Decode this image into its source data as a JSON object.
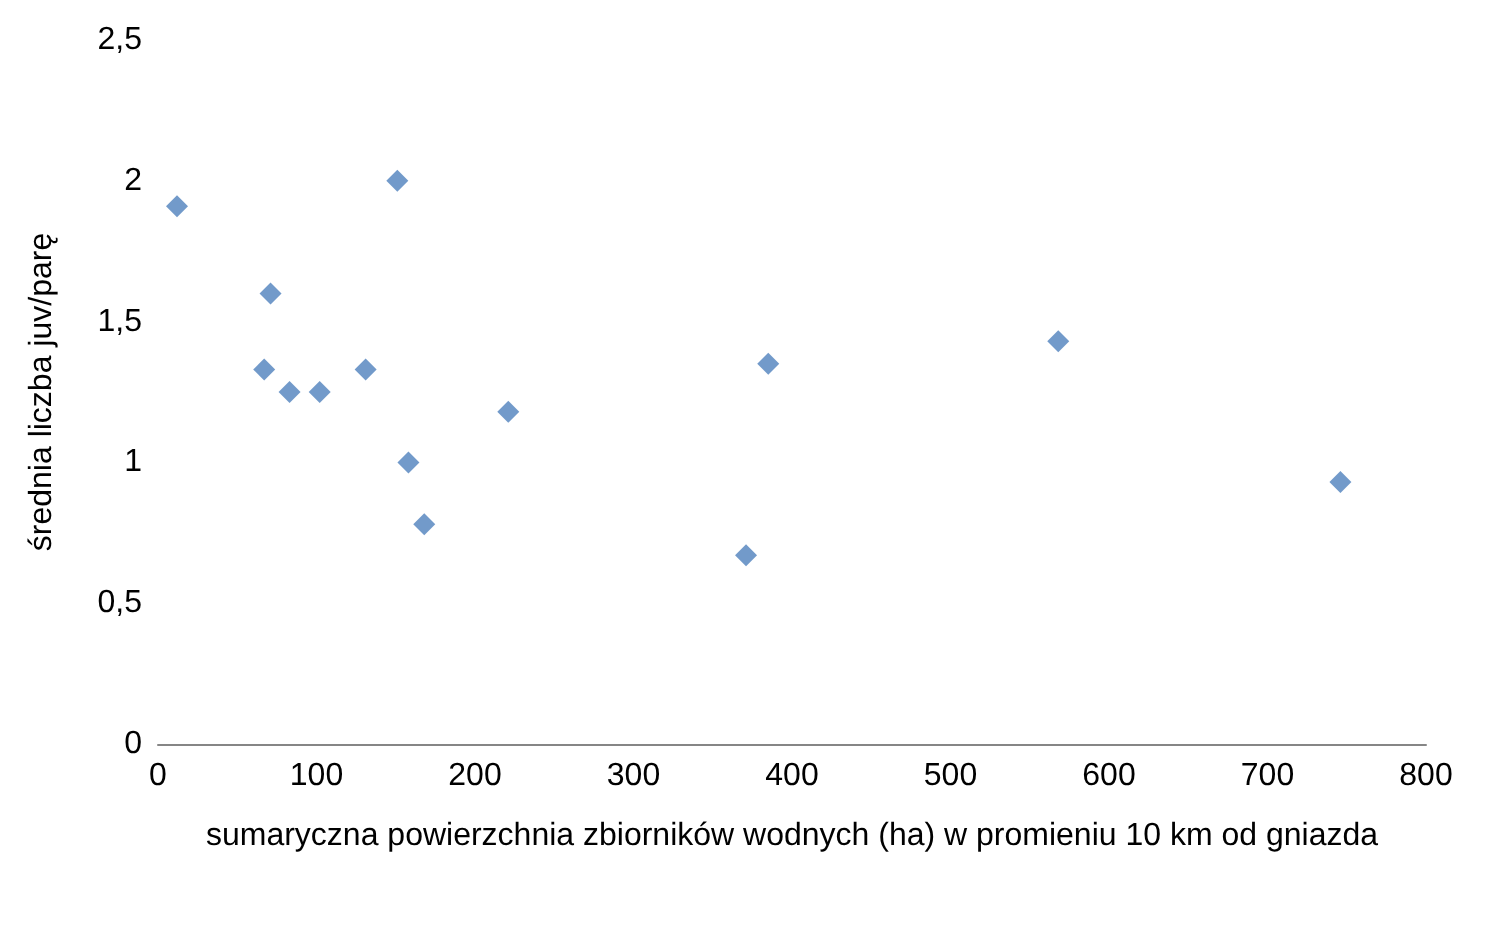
{
  "chart_data": {
    "type": "scatter",
    "xlabel": "sumaryczna powierzchnia zbiorników wodnych (ha) w promieniu 10 km od gniazda",
    "ylabel": "średnia liczba juv/parę",
    "x": [
      12,
      71,
      67,
      83,
      102,
      131,
      151,
      158,
      168,
      221,
      371,
      385,
      568,
      746
    ],
    "series": [
      {
        "color": "#4f81bd",
        "values": [
          1.91,
          1.6,
          1.33,
          1.25,
          1.25,
          1.33,
          2.0,
          1.0,
          0.78,
          1.18,
          0.67,
          1.35,
          1.43,
          0.93
        ]
      }
    ],
    "xlim": [
      0,
      800
    ],
    "xticks": [
      0,
      100,
      200,
      300,
      400,
      500,
      600,
      700,
      800
    ],
    "ylim": [
      0,
      2.5
    ],
    "yticks": [
      0,
      {
        "value": 0.5,
        "label": "0,5"
      },
      1,
      {
        "value": 1.5,
        "label": "1,5"
      },
      2,
      {
        "value": 2.5,
        "label": "2,5"
      }
    ],
    "marker": "diamond"
  }
}
